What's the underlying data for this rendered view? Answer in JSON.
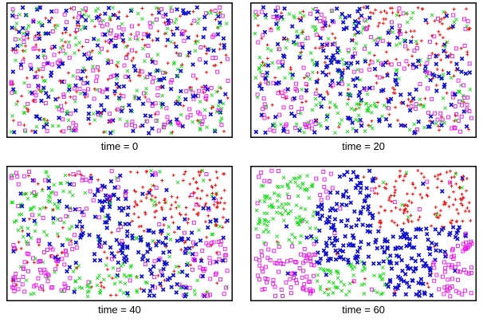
{
  "colors": {
    "red": "#ee1111",
    "green": "#11dd11",
    "blue": "#1111cc",
    "magenta": "#ee11ee"
  },
  "chart_data": [
    {
      "type": "scatter",
      "caption": "time = 0",
      "time": 0,
      "grid": false,
      "legend": "none",
      "markers": {
        "red": "plus",
        "green": "x-cross",
        "blue": "filled-x",
        "magenta": "open-square"
      },
      "xlim": [
        0,
        1
      ],
      "ylim": [
        0,
        1
      ],
      "note": "agents of four types uniformly mixed across the whole box"
    },
    {
      "type": "scatter",
      "caption": "time = 20",
      "time": 20,
      "grid": false,
      "legend": "none",
      "markers": {
        "red": "plus",
        "green": "x-cross",
        "blue": "filled-x",
        "magenta": "open-square"
      },
      "xlim": [
        0,
        1
      ],
      "ylim": [
        0,
        1
      ],
      "note": "clusters begin forming: red top-right, blue center, green left-middle, magenta bottom-left"
    },
    {
      "type": "scatter",
      "caption": "time = 40",
      "time": 40,
      "grid": false,
      "legend": "none",
      "markers": {
        "red": "plus",
        "green": "x-cross",
        "blue": "filled-x",
        "magenta": "open-square"
      },
      "xlim": [
        0,
        1
      ],
      "ylim": [
        0,
        1
      ],
      "note": "clusters more segregated"
    },
    {
      "type": "scatter",
      "caption": "time = 60",
      "time": 60,
      "grid": false,
      "legend": "none",
      "markers": {
        "red": "plus",
        "green": "x-cross",
        "blue": "filled-x",
        "magenta": "open-square"
      },
      "xlim": [
        0,
        1
      ],
      "ylim": [
        0,
        1
      ],
      "note": "strongly segregated: green left, blue center, red top-right, magenta bottom-left and bottom-right"
    }
  ]
}
